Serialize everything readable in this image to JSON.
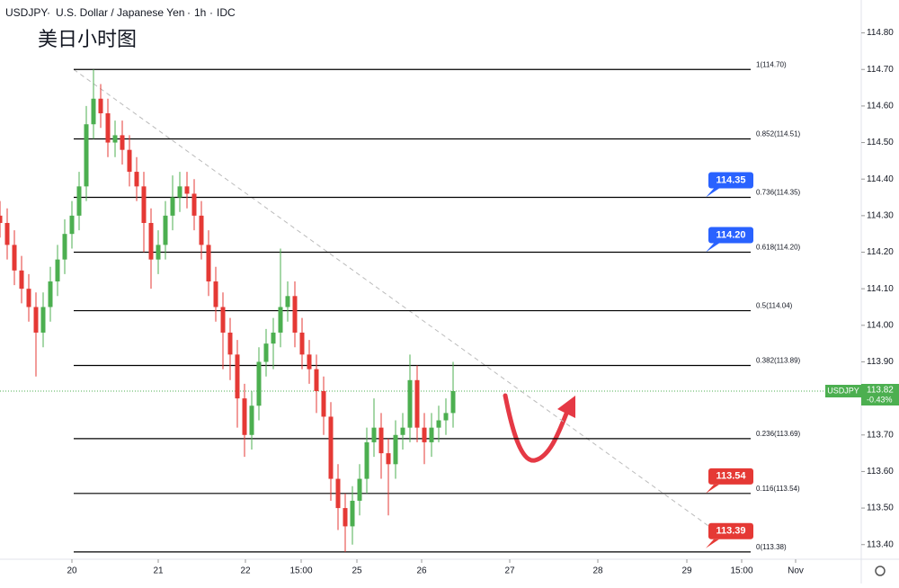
{
  "chart_data": {
    "type": "candlestick",
    "symbol": "USDJPY",
    "title": "U.S. Dollar / Japanese Yen",
    "interval": "1h",
    "source": "IDC",
    "subtitle": "美日小时图",
    "xlim": [
      0,
      239.5
    ],
    "ylim": [
      113.36,
      114.89
    ],
    "yticks": [
      {
        "value": 114.8,
        "label": "114.80"
      },
      {
        "value": 114.7,
        "label": "114.70"
      },
      {
        "value": 114.6,
        "label": "114.60"
      },
      {
        "value": 114.5,
        "label": "114.50"
      },
      {
        "value": 114.4,
        "label": "114.40"
      },
      {
        "value": 114.3,
        "label": "114.30"
      },
      {
        "value": 114.2,
        "label": "114.20"
      },
      {
        "value": 114.1,
        "label": "114.10"
      },
      {
        "value": 114.0,
        "label": "114.00"
      },
      {
        "value": 113.9,
        "label": "113.90"
      },
      {
        "value": 113.8,
        "label": "113.80"
      },
      {
        "value": 113.7,
        "label": "113.70"
      },
      {
        "value": 113.6,
        "label": "113.60"
      },
      {
        "value": 113.5,
        "label": "113.50"
      },
      {
        "value": 113.4,
        "label": "113.40"
      }
    ],
    "xticks": [
      {
        "value": 20,
        "label": "20"
      },
      {
        "value": 44,
        "label": "21"
      },
      {
        "value": 68.25,
        "label": "22"
      },
      {
        "value": 83.75,
        "label": "15:00"
      },
      {
        "value": 99.25,
        "label": "25"
      },
      {
        "value": 117.25,
        "label": "26"
      },
      {
        "value": 141.75,
        "label": "27"
      },
      {
        "value": 166.25,
        "label": "28"
      },
      {
        "value": 191,
        "label": "29"
      },
      {
        "value": 206.25,
        "label": "15:00"
      },
      {
        "value": 221.25,
        "label": "Nov"
      }
    ],
    "up_color": "#4caf50",
    "down_color": "#e53935",
    "x": [
      0,
      2,
      4,
      6,
      8,
      10,
      12,
      14,
      16,
      18,
      20,
      22,
      24,
      26,
      28,
      30,
      32,
      34,
      36,
      38,
      40,
      42,
      44,
      46,
      48,
      50,
      52,
      54,
      56,
      58,
      60,
      62,
      64,
      66,
      68,
      70,
      72,
      74,
      76,
      78,
      80,
      82,
      84,
      86,
      88,
      90,
      92,
      94,
      96,
      98,
      100,
      102,
      104,
      106,
      108,
      110,
      112,
      114,
      116,
      118,
      120,
      122,
      124,
      126
    ],
    "open": [
      114.3,
      114.28,
      114.22,
      114.15,
      114.1,
      114.05,
      113.98,
      114.05,
      114.12,
      114.18,
      114.25,
      114.3,
      114.38,
      114.55,
      114.62,
      114.58,
      114.5,
      114.52,
      114.48,
      114.42,
      114.38,
      114.28,
      114.18,
      114.22,
      114.3,
      114.35,
      114.38,
      114.36,
      114.3,
      114.22,
      114.12,
      114.05,
      113.98,
      113.92,
      113.8,
      113.7,
      113.78,
      113.9,
      113.95,
      113.98,
      114.05,
      114.08,
      113.98,
      113.92,
      113.88,
      113.82,
      113.75,
      113.58,
      113.5,
      113.45,
      113.52,
      113.58,
      113.68,
      113.72,
      113.65,
      113.62,
      113.7,
      113.72,
      113.85,
      113.72,
      113.68,
      113.72,
      113.74,
      113.76
    ],
    "high": [
      114.34,
      114.32,
      114.26,
      114.19,
      114.14,
      114.09,
      114.09,
      114.16,
      114.22,
      114.29,
      114.34,
      114.42,
      114.6,
      114.7,
      114.66,
      114.62,
      114.56,
      114.56,
      114.52,
      114.46,
      114.42,
      114.32,
      114.26,
      114.34,
      114.41,
      114.42,
      114.42,
      114.4,
      114.34,
      114.26,
      114.16,
      114.09,
      114.02,
      113.96,
      113.84,
      113.82,
      113.94,
      113.99,
      114.02,
      114.21,
      114.12,
      114.12,
      114.02,
      113.96,
      113.92,
      113.86,
      113.79,
      113.62,
      113.54,
      113.56,
      113.62,
      113.72,
      113.8,
      113.76,
      113.69,
      113.74,
      113.76,
      113.92,
      113.89,
      113.76,
      113.76,
      113.78,
      113.8,
      113.9
    ],
    "low": [
      114.24,
      114.18,
      114.11,
      114.06,
      114.01,
      113.86,
      113.94,
      114.01,
      114.08,
      114.14,
      114.21,
      114.26,
      114.34,
      114.51,
      114.54,
      114.46,
      114.46,
      114.44,
      114.38,
      114.34,
      114.2,
      114.1,
      114.14,
      114.18,
      114.26,
      114.31,
      114.32,
      114.26,
      114.18,
      114.08,
      114.01,
      113.88,
      113.85,
      113.72,
      113.64,
      113.66,
      113.74,
      113.86,
      113.88,
      113.94,
      114.01,
      113.94,
      113.88,
      113.84,
      113.76,
      113.7,
      113.52,
      113.44,
      113.38,
      113.4,
      113.48,
      113.54,
      113.64,
      113.58,
      113.48,
      113.58,
      113.66,
      113.68,
      113.68,
      113.62,
      113.64,
      113.68,
      113.7,
      113.72
    ],
    "close": [
      114.28,
      114.22,
      114.15,
      114.1,
      114.05,
      113.98,
      114.05,
      114.12,
      114.18,
      114.25,
      114.3,
      114.38,
      114.55,
      114.62,
      114.58,
      114.5,
      114.52,
      114.48,
      114.42,
      114.38,
      114.28,
      114.18,
      114.22,
      114.3,
      114.35,
      114.38,
      114.36,
      114.3,
      114.22,
      114.12,
      114.05,
      113.98,
      113.92,
      113.8,
      113.7,
      113.78,
      113.9,
      113.95,
      113.98,
      114.05,
      114.08,
      113.98,
      113.92,
      113.88,
      113.82,
      113.75,
      113.58,
      113.5,
      113.45,
      113.52,
      113.58,
      113.68,
      113.72,
      113.65,
      113.62,
      113.7,
      113.72,
      113.85,
      113.72,
      113.68,
      113.72,
      113.74,
      113.76,
      113.82
    ],
    "fib_range": [
      20.5,
      208.75
    ],
    "fib_levels": [
      {
        "value": 114.7,
        "label": "1(114.70)"
      },
      {
        "value": 114.51,
        "label": "0.852(114.51)"
      },
      {
        "value": 114.35,
        "label": "0.736(114.35)"
      },
      {
        "value": 114.2,
        "label": "0.618(114.20)"
      },
      {
        "value": 114.04,
        "label": "0.5(114.04)"
      },
      {
        "value": 113.89,
        "label": "0.382(113.89)"
      },
      {
        "value": 113.69,
        "label": "0.236(113.69)"
      },
      {
        "value": 113.54,
        "label": "0.116(113.54)"
      },
      {
        "value": 113.38,
        "label": "0(113.38)"
      }
    ],
    "badges": [
      {
        "value": 114.35,
        "label": "114.35",
        "color": "#2962ff"
      },
      {
        "value": 114.2,
        "label": "114.20",
        "color": "#2962ff"
      },
      {
        "value": 113.54,
        "label": "113.54",
        "color": "#e53935"
      },
      {
        "value": 113.39,
        "label": "113.39",
        "color": "#e53935"
      }
    ],
    "trendline": {
      "x": [
        20.5,
        200
      ],
      "y": [
        114.7,
        113.43
      ],
      "color": "#bbbbbb"
    },
    "last_price": {
      "symbol": "USDJPY",
      "value": 113.82,
      "label": "113.82",
      "change": "-0.43%",
      "color": "#4caf50"
    }
  }
}
